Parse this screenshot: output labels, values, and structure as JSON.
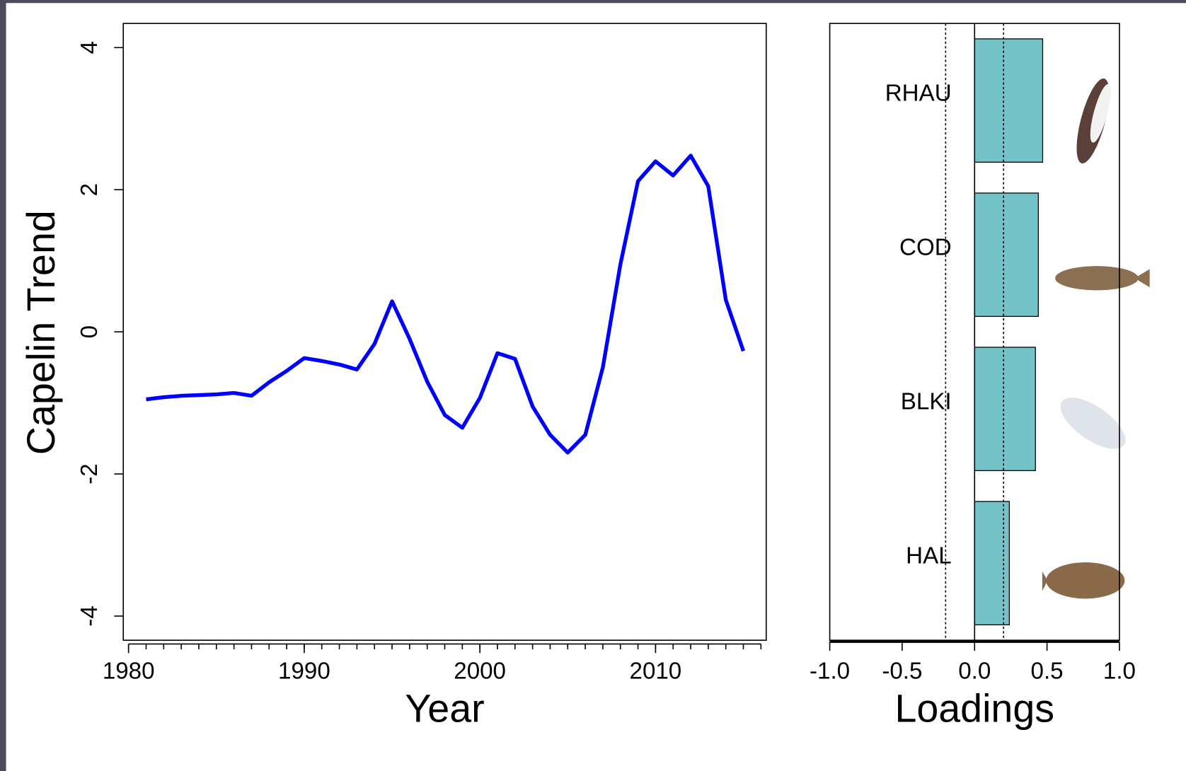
{
  "chart_data": [
    {
      "type": "line",
      "ylabel": "Capelin Trend",
      "xlabel": "Year",
      "color": "#0000ff",
      "x": [
        1981,
        1982,
        1983,
        1984,
        1985,
        1986,
        1987,
        1988,
        1989,
        1990,
        1991,
        1992,
        1993,
        1994,
        1995,
        1996,
        1997,
        1998,
        1999,
        2000,
        2001,
        2002,
        2003,
        2004,
        2005,
        2006,
        2007,
        2008,
        2009,
        2010,
        2011,
        2012,
        2013,
        2014,
        2015
      ],
      "values": [
        -0.95,
        -0.92,
        -0.9,
        -0.89,
        -0.88,
        -0.86,
        -0.9,
        -0.71,
        -0.55,
        -0.37,
        -0.41,
        -0.46,
        -0.53,
        -0.17,
        0.43,
        -0.1,
        -0.7,
        -1.17,
        -1.35,
        -0.93,
        -0.3,
        -0.38,
        -1.05,
        -1.45,
        -1.7,
        -1.45,
        -0.5,
        0.95,
        2.12,
        2.4,
        2.2,
        2.48,
        2.05,
        0.45,
        -0.27
      ],
      "xlim": [
        1979.7,
        2016.3
      ],
      "ylim": [
        -4.34,
        4.34
      ],
      "xticks": [
        1980,
        1990,
        2000,
        2010
      ],
      "xminor_ticks": [
        1980,
        1981,
        1982,
        1983,
        1984,
        1985,
        1986,
        1987,
        1988,
        1989,
        1990,
        1991,
        1992,
        1993,
        1994,
        1995,
        1996,
        1997,
        1998,
        1999,
        2000,
        2001,
        2002,
        2003,
        2004,
        2005,
        2006,
        2007,
        2008,
        2009,
        2010,
        2011,
        2012,
        2013,
        2014,
        2015,
        2016
      ],
      "yticks": [
        -4,
        -2,
        0,
        2,
        4
      ]
    },
    {
      "type": "hbar",
      "xlabel": "Loadings",
      "color": "#74c3c9",
      "categories": [
        "RHAU",
        "COD",
        "BLKI",
        "HAL"
      ],
      "values": [
        0.47,
        0.44,
        0.42,
        0.24
      ],
      "xlim": [
        -1,
        1
      ],
      "xticks": [
        {
          "value": -1,
          "label": "-1.0"
        },
        {
          "value": -0.5,
          "label": "-0.5"
        },
        {
          "value": 0,
          "label": "0.0"
        },
        {
          "value": 0.5,
          "label": "0.5"
        },
        {
          "value": 1,
          "label": "1.0"
        }
      ],
      "ref_lines": [
        {
          "value": -0.2,
          "style": "dotted"
        },
        {
          "value": 0,
          "style": "solid"
        },
        {
          "value": 0.2,
          "style": "dotted"
        }
      ]
    }
  ]
}
